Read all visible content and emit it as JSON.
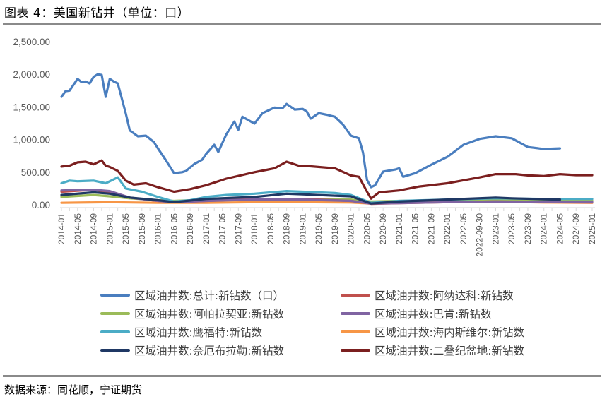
{
  "header": {
    "title": "图表 4：美国新钻井（单位：口）"
  },
  "footer": {
    "source": "数据来源：同花顺，宁证期货"
  },
  "legend": [
    {
      "label": "区域油井数:总计:新钻数（口）",
      "color": "#4a7ebf"
    },
    {
      "label": "区域油井数:阿纳达科:新钻数",
      "color": "#c0504d"
    },
    {
      "label": "区域油井数:阿帕拉契亚:新钻数",
      "color": "#9bbb59"
    },
    {
      "label": "区域油井数:巴肯:新钻数",
      "color": "#8064a2"
    },
    {
      "label": "区域油井数:鹰福特:新钻数",
      "color": "#4bacc6"
    },
    {
      "label": "区域油井数:海内斯维尔:新钻数",
      "color": "#f79646"
    },
    {
      "label": "区域油井数:奈厄布拉勒:新钻数",
      "color": "#1f3864"
    },
    {
      "label": "区域油井数:二叠纪盆地:新钻数",
      "color": "#7b1f1f"
    }
  ],
  "chart_data": {
    "type": "line",
    "title": "图表 4：美国新钻井（单位：口）",
    "xlabel": "",
    "ylabel": "",
    "ylim": [
      0,
      2500
    ],
    "yticks": [
      "0.00",
      "500.00",
      "1,000.00",
      "1,500.00",
      "2,000.00",
      "2,500.00"
    ],
    "x_tick_labels": [
      "2014-01",
      "2014-05",
      "2014-09",
      "2015-01",
      "2015-05",
      "2015-09",
      "2016-01",
      "2016-05",
      "2016-09",
      "2017-01",
      "2017-05",
      "2017-09",
      "2018-01",
      "2018-05",
      "2018-09",
      "2019-01",
      "2019-05",
      "2019-09",
      "2020-01",
      "2020-05",
      "2020-09",
      "2021-01",
      "2021-05",
      "2021-09",
      "2022-01",
      "2022-05",
      "2022-09-30",
      "2023-01",
      "2023-05",
      "2023-09",
      "2024-01",
      "2024-05",
      "2024-09",
      "2025-01"
    ],
    "grid": false,
    "legend_position": "bottom",
    "x_range": [
      "2014-01",
      "2025-01"
    ],
    "series": [
      {
        "name": "区域油井数:总计:新钻数（口）",
        "color": "#4a7ebf",
        "points": [
          [
            "2014-01",
            1655
          ],
          [
            "2014-02",
            1740
          ],
          [
            "2014-03",
            1750
          ],
          [
            "2014-05",
            1930
          ],
          [
            "2014-06",
            1880
          ],
          [
            "2014-07",
            1890
          ],
          [
            "2014-08",
            1860
          ],
          [
            "2014-09",
            1960
          ],
          [
            "2014-10",
            2000
          ],
          [
            "2014-11",
            1990
          ],
          [
            "2014-12",
            1655
          ],
          [
            "2015-01",
            1930
          ],
          [
            "2015-02",
            1890
          ],
          [
            "2015-03",
            1860
          ],
          [
            "2015-05",
            1400
          ],
          [
            "2015-06",
            1140
          ],
          [
            "2015-08",
            1050
          ],
          [
            "2015-10",
            1060
          ],
          [
            "2015-12",
            960
          ],
          [
            "2016-01",
            865
          ],
          [
            "2016-03",
            680
          ],
          [
            "2016-05",
            485
          ],
          [
            "2016-07",
            500
          ],
          [
            "2016-08",
            520
          ],
          [
            "2016-10",
            625
          ],
          [
            "2016-12",
            690
          ],
          [
            "2017-01",
            780
          ],
          [
            "2017-03",
            920
          ],
          [
            "2017-04",
            810
          ],
          [
            "2017-06",
            1080
          ],
          [
            "2017-08",
            1275
          ],
          [
            "2017-09",
            1150
          ],
          [
            "2017-10",
            1350
          ],
          [
            "2018-01",
            1245
          ],
          [
            "2018-03",
            1405
          ],
          [
            "2018-06",
            1490
          ],
          [
            "2018-08",
            1480
          ],
          [
            "2018-09",
            1545
          ],
          [
            "2018-11",
            1460
          ],
          [
            "2019-01",
            1470
          ],
          [
            "2019-02",
            1430
          ],
          [
            "2019-03",
            1320
          ],
          [
            "2019-05",
            1405
          ],
          [
            "2019-07",
            1380
          ],
          [
            "2019-09",
            1350
          ],
          [
            "2019-11",
            1230
          ],
          [
            "2020-01",
            1060
          ],
          [
            "2020-03",
            1020
          ],
          [
            "2020-04",
            800
          ],
          [
            "2020-05",
            380
          ],
          [
            "2020-06",
            270
          ],
          [
            "2020-07",
            300
          ],
          [
            "2020-09",
            510
          ],
          [
            "2020-12",
            540
          ],
          [
            "2021-01",
            560
          ],
          [
            "2021-02",
            430
          ],
          [
            "2021-05",
            485
          ],
          [
            "2021-09",
            615
          ],
          [
            "2022-01",
            735
          ],
          [
            "2022-05",
            920
          ],
          [
            "2022-09",
            1010
          ],
          [
            "2023-01",
            1050
          ],
          [
            "2023-05",
            1020
          ],
          [
            "2023-09",
            885
          ],
          [
            "2024-01",
            855
          ],
          [
            "2024-05",
            865
          ]
        ]
      },
      {
        "name": "区域油井数:阿纳达科:新钻数",
        "color": "#c0504d",
        "points": [
          [
            "2014-01",
            200
          ],
          [
            "2014-09",
            230
          ],
          [
            "2015-01",
            190
          ],
          [
            "2015-06",
            110
          ],
          [
            "2016-01",
            60
          ],
          [
            "2016-05",
            40
          ],
          [
            "2017-01",
            60
          ],
          [
            "2018-01",
            90
          ],
          [
            "2019-01",
            90
          ],
          [
            "2020-01",
            60
          ],
          [
            "2020-06",
            15
          ],
          [
            "2021-01",
            25
          ],
          [
            "2022-01",
            40
          ],
          [
            "2023-01",
            50
          ],
          [
            "2024-01",
            40
          ],
          [
            "2025-01",
            35
          ]
        ]
      },
      {
        "name": "区域油井数:阿帕拉契亚:新钻数",
        "color": "#9bbb59",
        "points": [
          [
            "2014-01",
            120
          ],
          [
            "2014-09",
            150
          ],
          [
            "2015-01",
            130
          ],
          [
            "2015-06",
            100
          ],
          [
            "2016-01",
            70
          ],
          [
            "2016-05",
            60
          ],
          [
            "2017-01",
            80
          ],
          [
            "2018-01",
            90
          ],
          [
            "2019-01",
            90
          ],
          [
            "2020-01",
            80
          ],
          [
            "2020-06",
            50
          ],
          [
            "2021-01",
            60
          ],
          [
            "2022-01",
            70
          ],
          [
            "2023-01",
            80
          ],
          [
            "2024-01",
            70
          ],
          [
            "2025-01",
            65
          ]
        ]
      },
      {
        "name": "区域油井数:巴肯:新钻数",
        "color": "#8064a2",
        "points": [
          [
            "2014-01",
            220
          ],
          [
            "2014-09",
            230
          ],
          [
            "2015-01",
            210
          ],
          [
            "2015-06",
            110
          ],
          [
            "2016-01",
            60
          ],
          [
            "2016-05",
            40
          ],
          [
            "2017-01",
            60
          ],
          [
            "2018-01",
            80
          ],
          [
            "2019-01",
            80
          ],
          [
            "2020-01",
            60
          ],
          [
            "2020-06",
            20
          ],
          [
            "2021-01",
            25
          ],
          [
            "2022-01",
            40
          ],
          [
            "2023-01",
            50
          ],
          [
            "2024-01",
            45
          ],
          [
            "2025-01",
            45
          ]
        ]
      },
      {
        "name": "区域油井数:鹰福特:新钻数",
        "color": "#4bacc6",
        "points": [
          [
            "2014-01",
            330
          ],
          [
            "2014-03",
            370
          ],
          [
            "2014-05",
            360
          ],
          [
            "2014-09",
            370
          ],
          [
            "2014-12",
            330
          ],
          [
            "2015-03",
            420
          ],
          [
            "2015-05",
            250
          ],
          [
            "2015-09",
            200
          ],
          [
            "2016-01",
            120
          ],
          [
            "2016-05",
            50
          ],
          [
            "2016-09",
            70
          ],
          [
            "2017-01",
            120
          ],
          [
            "2017-06",
            150
          ],
          [
            "2018-01",
            170
          ],
          [
            "2018-09",
            210
          ],
          [
            "2019-01",
            200
          ],
          [
            "2019-09",
            180
          ],
          [
            "2020-01",
            150
          ],
          [
            "2020-06",
            30
          ],
          [
            "2021-01",
            60
          ],
          [
            "2022-01",
            80
          ],
          [
            "2023-01",
            100
          ],
          [
            "2024-01",
            90
          ],
          [
            "2025-01",
            90
          ]
        ]
      },
      {
        "name": "区域油井数:海内斯维尔:新钻数",
        "color": "#f79646",
        "points": [
          [
            "2014-01",
            30
          ],
          [
            "2015-01",
            40
          ],
          [
            "2016-01",
            30
          ],
          [
            "2017-01",
            30
          ],
          [
            "2018-01",
            40
          ],
          [
            "2019-01",
            40
          ],
          [
            "2020-01",
            35
          ],
          [
            "2020-06",
            20
          ],
          [
            "2021-01",
            30
          ],
          [
            "2022-01",
            45
          ],
          [
            "2023-01",
            50
          ],
          [
            "2024-01",
            35
          ],
          [
            "2025-01",
            30
          ]
        ]
      },
      {
        "name": "区域油井数:奈厄布拉勒:新钻数",
        "color": "#1f3864",
        "points": [
          [
            "2014-01",
            150
          ],
          [
            "2014-09",
            190
          ],
          [
            "2015-01",
            170
          ],
          [
            "2015-06",
            110
          ],
          [
            "2016-01",
            70
          ],
          [
            "2016-05",
            40
          ],
          [
            "2017-01",
            90
          ],
          [
            "2018-01",
            120
          ],
          [
            "2018-09",
            170
          ],
          [
            "2019-01",
            160
          ],
          [
            "2019-09",
            140
          ],
          [
            "2020-01",
            130
          ],
          [
            "2020-06",
            20
          ],
          [
            "2021-01",
            50
          ],
          [
            "2022-01",
            80
          ],
          [
            "2023-01",
            110
          ],
          [
            "2023-05",
            100
          ],
          [
            "2024-01",
            85
          ],
          [
            "2024-05",
            80
          ]
        ]
      },
      {
        "name": "区域油井数:二叠纪盆地:新钻数",
        "color": "#7b1f1f",
        "points": [
          [
            "2014-01",
            585
          ],
          [
            "2014-03",
            600
          ],
          [
            "2014-05",
            650
          ],
          [
            "2014-07",
            660
          ],
          [
            "2014-09",
            620
          ],
          [
            "2014-11",
            680
          ],
          [
            "2014-12",
            600
          ],
          [
            "2015-01",
            580
          ],
          [
            "2015-03",
            520
          ],
          [
            "2015-05",
            370
          ],
          [
            "2015-07",
            310
          ],
          [
            "2015-10",
            330
          ],
          [
            "2016-01",
            270
          ],
          [
            "2016-05",
            200
          ],
          [
            "2016-09",
            240
          ],
          [
            "2017-01",
            300
          ],
          [
            "2017-06",
            400
          ],
          [
            "2018-01",
            500
          ],
          [
            "2018-06",
            560
          ],
          [
            "2018-09",
            660
          ],
          [
            "2018-12",
            600
          ],
          [
            "2019-03",
            590
          ],
          [
            "2019-09",
            560
          ],
          [
            "2020-01",
            450
          ],
          [
            "2020-03",
            430
          ],
          [
            "2020-05",
            200
          ],
          [
            "2020-06",
            95
          ],
          [
            "2020-08",
            190
          ],
          [
            "2021-01",
            220
          ],
          [
            "2021-06",
            280
          ],
          [
            "2022-01",
            330
          ],
          [
            "2022-09",
            420
          ],
          [
            "2023-01",
            470
          ],
          [
            "2023-06",
            470
          ],
          [
            "2023-09",
            450
          ],
          [
            "2024-01",
            440
          ],
          [
            "2024-05",
            470
          ],
          [
            "2024-09",
            455
          ],
          [
            "2025-01",
            455
          ]
        ]
      }
    ]
  }
}
